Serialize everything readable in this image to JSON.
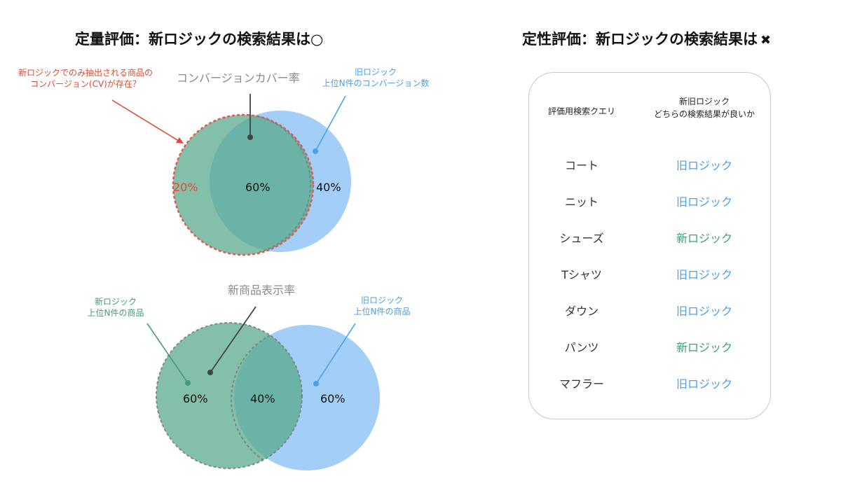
{
  "left": {
    "title": "定量評価：新ロジックの検索結果は○",
    "top_venn": {
      "center_label": "コンバージョンカバー率",
      "red_annotation": [
        "新ロジックでのみ抽出される商品の",
        "コンバージョン(CV)が存在？"
      ],
      "blue_annotation": [
        "旧ロジック",
        "上位N件のコンバージョン数"
      ],
      "pct_left": "20%",
      "pct_center": "60%",
      "pct_right": "40%"
    },
    "bottom_venn": {
      "center_label": "新商品表示率",
      "green_annotation": [
        "新ロジック",
        "上位N件の商品"
      ],
      "blue_annotation": [
        "旧ロジック",
        "上位N件の商品"
      ],
      "pct_left": "60%",
      "pct_center": "40%",
      "pct_right": "60%"
    }
  },
  "right": {
    "title": "定性評価：新ロジックの検索結果は",
    "title_mark": "✖",
    "table": {
      "header_query": "評価用検索クエリ",
      "header_result": [
        "新旧ロジック",
        "どちらの検索結果が良いか"
      ],
      "rows": [
        {
          "query": "コート",
          "result": "旧ロジック",
          "type": "old"
        },
        {
          "query": "ニット",
          "result": "旧ロジック",
          "type": "old"
        },
        {
          "query": "シューズ",
          "result": "新ロジック",
          "type": "new"
        },
        {
          "query": "Tシャツ",
          "result": "旧ロジック",
          "type": "old"
        },
        {
          "query": "ダウン",
          "result": "旧ロジック",
          "type": "old"
        },
        {
          "query": "パンツ",
          "result": "新ロジック",
          "type": "new"
        },
        {
          "query": "マフラー",
          "result": "旧ロジック",
          "type": "old"
        }
      ]
    }
  },
  "colors": {
    "green": "#3f9e7c",
    "blue": "#4aa0ea",
    "red": "#e04b33",
    "green_fill": "#6ab59b",
    "blue_fill": "#8fc3f7"
  }
}
